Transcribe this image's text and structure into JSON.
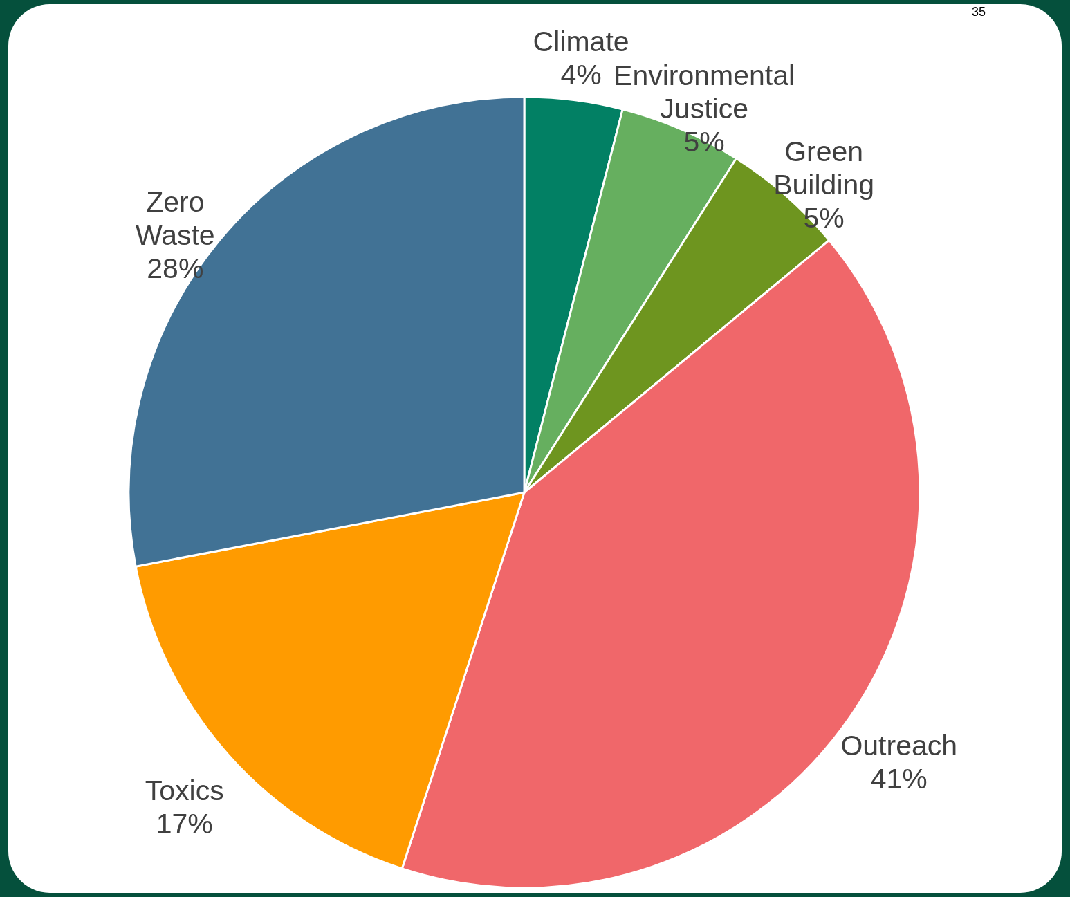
{
  "chart_data": {
    "type": "pie",
    "categories": [
      "Climate",
      "Environmental Justice",
      "Green Building",
      "Outreach",
      "Toxics",
      "Zero Waste"
    ],
    "values": [
      4,
      5,
      5,
      41,
      17,
      28
    ],
    "colors": [
      "#028064",
      "#66af5f",
      "#6e951f",
      "#f0676a",
      "#ff9b00",
      "#417295"
    ],
    "value_labels": [
      "4%",
      "5%",
      "5%",
      "41%",
      "17%",
      "28%"
    ],
    "annotations": [
      "35"
    ]
  }
}
